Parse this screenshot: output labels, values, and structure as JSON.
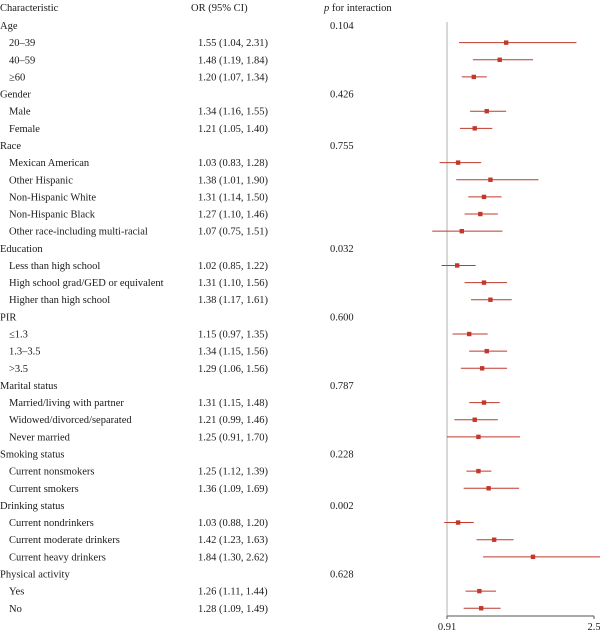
{
  "chart_data": {
    "type": "forest",
    "headers": {
      "characteristic": "Characteristic",
      "or_ci": "OR (95% CI)",
      "p_italic": "p",
      "p_rest": " for interaction"
    },
    "xaxis": {
      "ref": 0.91,
      "max": 2.5,
      "ticks": [
        "0.91",
        "2.5"
      ]
    },
    "colors": {
      "marker": "#c0392b",
      "line": "#c0392b",
      "axis": "#555555",
      "ref": "#b0b0b0"
    },
    "rows": [
      {
        "kind": "group",
        "label": "Age",
        "p": "0.104"
      },
      {
        "kind": "sub",
        "label": "20–39",
        "ci_text": "1.55 (1.04, 2.31)",
        "or": 1.55,
        "lo": 1.04,
        "hi": 2.31
      },
      {
        "kind": "sub",
        "label": "40–59",
        "ci_text": "1.48 (1.19, 1.84)",
        "or": 1.48,
        "lo": 1.19,
        "hi": 1.84
      },
      {
        "kind": "sub",
        "label": "≥60",
        "ci_text": "1.20 (1.07, 1.34)",
        "or": 1.2,
        "lo": 1.07,
        "hi": 1.34
      },
      {
        "kind": "group",
        "label": "Gender",
        "p": "0.426"
      },
      {
        "kind": "sub",
        "label": "Male",
        "ci_text": "1.34 (1.16, 1.55)",
        "or": 1.34,
        "lo": 1.16,
        "hi": 1.55
      },
      {
        "kind": "sub",
        "label": "Female",
        "ci_text": "1.21 (1.05, 1.40)",
        "or": 1.21,
        "lo": 1.05,
        "hi": 1.4
      },
      {
        "kind": "group",
        "label": "Race",
        "p": "0.755"
      },
      {
        "kind": "sub",
        "label": "Mexican American",
        "ci_text": "1.03 (0.83, 1.28)",
        "or": 1.03,
        "lo": 0.83,
        "hi": 1.28
      },
      {
        "kind": "sub",
        "label": "Other Hispanic",
        "ci_text": "1.38 (1.01, 1.90)",
        "or": 1.38,
        "lo": 1.01,
        "hi": 1.9
      },
      {
        "kind": "sub",
        "label": "Non-Hispanic White",
        "ci_text": "1.31 (1.14, 1.50)",
        "or": 1.31,
        "lo": 1.14,
        "hi": 1.5
      },
      {
        "kind": "sub",
        "label": "Non-Hispanic Black",
        "ci_text": "1.27 (1.10, 1.46)",
        "or": 1.27,
        "lo": 1.1,
        "hi": 1.46
      },
      {
        "kind": "sub",
        "label": "Other race-including multi-racial",
        "ci_text": "1.07 (0.75, 1.51)",
        "or": 1.07,
        "lo": 0.75,
        "hi": 1.51
      },
      {
        "kind": "group",
        "label": "Education",
        "p": "0.032"
      },
      {
        "kind": "sub",
        "label": "Less than high school",
        "ci_text": "1.02 (0.85, 1.22)",
        "or": 1.02,
        "lo": 0.85,
        "hi": 1.22
      },
      {
        "kind": "sub",
        "label": "High school grad/GED or equivalent",
        "ci_text": "1.31 (1.10, 1.56)",
        "or": 1.31,
        "lo": 1.1,
        "hi": 1.56
      },
      {
        "kind": "sub",
        "label": "Higher than high school",
        "ci_text": "1.38 (1.17, 1.61)",
        "or": 1.38,
        "lo": 1.17,
        "hi": 1.61
      },
      {
        "kind": "group",
        "label": "PIR",
        "p": "0.600"
      },
      {
        "kind": "sub",
        "label": "≤1.3",
        "ci_text": "1.15 (0.97, 1.35)",
        "or": 1.15,
        "lo": 0.97,
        "hi": 1.35
      },
      {
        "kind": "sub",
        "label": "1.3–3.5",
        "ci_text": "1.34 (1.15, 1.56)",
        "or": 1.34,
        "lo": 1.15,
        "hi": 1.56
      },
      {
        "kind": "sub",
        "label": ">3.5",
        "ci_text": "1.29 (1.06, 1.56)",
        "or": 1.29,
        "lo": 1.06,
        "hi": 1.56
      },
      {
        "kind": "group",
        "label": "Marital status",
        "p": "0.787"
      },
      {
        "kind": "sub",
        "label": "Married/living with partner",
        "ci_text": "1.31 (1.15, 1.48)",
        "or": 1.31,
        "lo": 1.15,
        "hi": 1.48
      },
      {
        "kind": "sub",
        "label": "Widowed/divorced/separated",
        "ci_text": "1.21 (0.99, 1.46)",
        "or": 1.21,
        "lo": 0.99,
        "hi": 1.46
      },
      {
        "kind": "sub",
        "label": "Never married",
        "ci_text": "1.25 (0.91, 1.70)",
        "or": 1.25,
        "lo": 0.91,
        "hi": 1.7
      },
      {
        "kind": "group",
        "label": "Smoking status",
        "p": "0.228"
      },
      {
        "kind": "sub",
        "label": "Current nonsmokers",
        "ci_text": "1.25 (1.12, 1.39)",
        "or": 1.25,
        "lo": 1.12,
        "hi": 1.39
      },
      {
        "kind": "sub",
        "label": "Current smokers",
        "ci_text": "1.36 (1.09, 1.69)",
        "or": 1.36,
        "lo": 1.09,
        "hi": 1.69
      },
      {
        "kind": "group",
        "label": "Drinking status",
        "p": "0.002"
      },
      {
        "kind": "sub",
        "label": "Current nondrinkers",
        "ci_text": "1.03 (0.88, 1.20)",
        "or": 1.03,
        "lo": 0.88,
        "hi": 1.2
      },
      {
        "kind": "sub",
        "label": "Current moderate drinkers",
        "ci_text": "1.42 (1.23, 1.63)",
        "or": 1.42,
        "lo": 1.23,
        "hi": 1.63
      },
      {
        "kind": "sub",
        "label": "Current heavy drinkers",
        "ci_text": "1.84 (1.30, 2.62)",
        "or": 1.84,
        "lo": 1.3,
        "hi": 2.62
      },
      {
        "kind": "group",
        "label": "Physical activity",
        "p": "0.628"
      },
      {
        "kind": "sub",
        "label": "Yes",
        "ci_text": "1.26 (1.11, 1.44)",
        "or": 1.26,
        "lo": 1.11,
        "hi": 1.44
      },
      {
        "kind": "sub",
        "label": "No",
        "ci_text": "1.28 (1.09, 1.49)",
        "or": 1.28,
        "lo": 1.09,
        "hi": 1.49
      }
    ]
  }
}
